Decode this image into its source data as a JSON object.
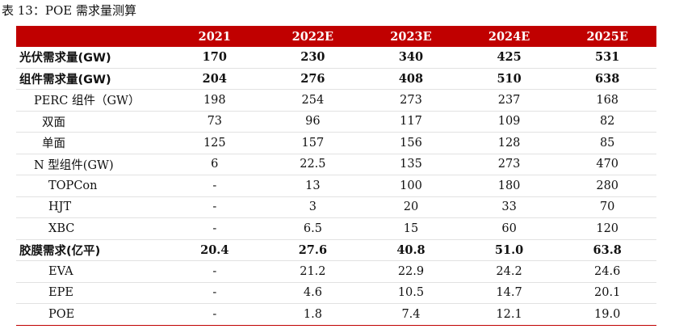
{
  "caption": "表 13：POE 需求量测算",
  "table": {
    "headers": [
      "",
      "2021",
      "2022E",
      "2023E",
      "2024E",
      "2025E"
    ],
    "rows": [
      {
        "label": "光伏需求量(GW)",
        "values": [
          "170",
          "230",
          "340",
          "425",
          "531"
        ],
        "bold": true
      },
      {
        "label": "组件需求量(GW)",
        "values": [
          "204",
          "276",
          "408",
          "510",
          "638"
        ],
        "bold": true
      },
      {
        "label": "PERC 组件（GW）",
        "values": [
          "198",
          "254",
          "273",
          "237",
          "168"
        ],
        "bold": false
      },
      {
        "label": "双面",
        "values": [
          "73",
          "96",
          "117",
          "109",
          "82"
        ],
        "bold": false
      },
      {
        "label": "单面",
        "values": [
          "125",
          "157",
          "156",
          "128",
          "85"
        ],
        "bold": false
      },
      {
        "label": "N 型组件(GW)",
        "values": [
          "6",
          "22.5",
          "135",
          "273",
          "470"
        ],
        "bold": false
      },
      {
        "label": "TOPCon",
        "values": [
          "-",
          "13",
          "100",
          "180",
          "280"
        ],
        "bold": false
      },
      {
        "label": "HJT",
        "values": [
          "-",
          "3",
          "20",
          "33",
          "70"
        ],
        "bold": false
      },
      {
        "label": "XBC",
        "values": [
          "-",
          "6.5",
          "15",
          "60",
          "120"
        ],
        "bold": false
      },
      {
        "label": "胶膜需求(亿平)",
        "values": [
          "20.4",
          "27.6",
          "40.8",
          "51.0",
          "63.8"
        ],
        "bold": true
      },
      {
        "label": "EVA",
        "values": [
          "-",
          "21.2",
          "22.9",
          "24.2",
          "24.6"
        ],
        "bold": false
      },
      {
        "label": "EPE",
        "values": [
          "-",
          "4.6",
          "10.5",
          "14.7",
          "20.1"
        ],
        "bold": false
      },
      {
        "label": "POE",
        "values": [
          "-",
          "1.8",
          "7.4",
          "12.1",
          "19.0"
        ],
        "bold": false
      }
    ]
  }
}
